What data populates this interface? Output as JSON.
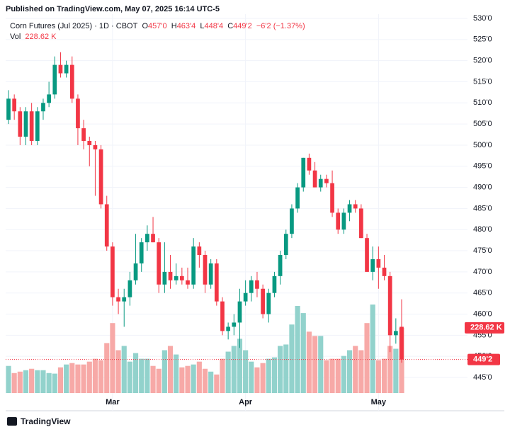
{
  "published": "Published on TradingView.com, May 07, 2025 16:14 UTC-5",
  "header": {
    "symbol": "Corn Futures (Jul 2025) · 1D · CBOT",
    "o_label": "O",
    "o": "457'0",
    "h_label": "H",
    "h": "463'4",
    "l_label": "L",
    "l": "448'4",
    "c_label": "C",
    "c": "449'2",
    "change": "−6'2 (−1.37%)",
    "vol_label": "Vol",
    "vol": "228.62 K"
  },
  "logo": "TradingView",
  "chart_data": {
    "type": "candlestick",
    "up_color": "#089981",
    "down_color": "#f23645",
    "volume_up_color": "#92d2cc",
    "volume_down_color": "#f7a9a7",
    "grid": true,
    "categories": [
      null,
      null,
      null,
      null,
      null,
      null,
      null,
      null,
      null,
      null,
      null,
      null,
      null,
      null,
      null,
      null,
      null,
      null,
      "Mar",
      null,
      null,
      null,
      null,
      null,
      null,
      null,
      null,
      null,
      null,
      null,
      null,
      null,
      null,
      null,
      null,
      null,
      null,
      null,
      null,
      null,
      null,
      "Apr",
      null,
      null,
      null,
      null,
      null,
      null,
      null,
      null,
      null,
      null,
      null,
      null,
      null,
      null,
      null,
      null,
      null,
      null,
      null,
      null,
      null,
      null,
      "May",
      null,
      null,
      null,
      null
    ],
    "open": [
      506,
      511,
      508,
      502,
      508,
      501,
      508,
      510,
      512,
      519,
      517,
      519,
      511,
      504,
      501,
      500,
      499,
      486,
      476,
      464,
      463,
      464,
      468,
      472,
      477,
      479,
      477,
      467,
      470,
      468,
      469,
      468,
      467,
      476,
      474,
      467,
      472,
      463,
      456,
      457,
      458,
      463,
      465,
      468,
      466,
      460,
      465,
      469,
      474,
      479,
      485,
      490,
      497,
      494,
      490,
      492,
      491,
      484,
      480,
      484,
      486,
      485,
      478,
      470,
      473,
      471,
      469,
      455,
      457
    ],
    "high": [
      513,
      512,
      509,
      509,
      510,
      509,
      511,
      515,
      521,
      522,
      520,
      521,
      512,
      506,
      502,
      501,
      500,
      488,
      477,
      466,
      466,
      470,
      479,
      478,
      481,
      483,
      478,
      477,
      474,
      472,
      471,
      471,
      478,
      477,
      475,
      473,
      473,
      464,
      458,
      460,
      466,
      468,
      469,
      470,
      467,
      466,
      470,
      475,
      480,
      486,
      491,
      497,
      498,
      496,
      493,
      493,
      494,
      485,
      485,
      487,
      487,
      486,
      479,
      476,
      476,
      474,
      470,
      459,
      463.5
    ],
    "low": [
      505,
      506,
      500,
      500,
      500,
      500,
      506,
      509,
      511,
      516,
      516,
      510,
      500,
      499,
      495,
      488,
      485,
      475,
      462,
      460,
      457,
      462,
      467,
      470,
      475,
      477,
      465,
      465,
      466,
      467,
      467,
      466,
      466,
      471,
      465,
      466,
      462,
      455,
      454,
      455,
      452,
      462,
      463,
      464,
      459,
      458,
      464,
      467,
      473,
      478,
      484,
      489,
      493,
      490,
      489,
      490,
      483,
      479,
      479,
      482,
      484,
      478,
      470,
      468,
      466,
      468,
      451,
      453,
      448.5
    ],
    "close": [
      511,
      508,
      502,
      508,
      501,
      508,
      510,
      512,
      519,
      517,
      519,
      511,
      504,
      501,
      500,
      499,
      486,
      476,
      464,
      463,
      464,
      468,
      472,
      477,
      479,
      477,
      467,
      470,
      468,
      469,
      468,
      467,
      476,
      474,
      467,
      472,
      463,
      456,
      457,
      458,
      463,
      465,
      468,
      466,
      460,
      465,
      469,
      474,
      479,
      485,
      490,
      497,
      494,
      490,
      492,
      491,
      484,
      480,
      484,
      486,
      485,
      478,
      470,
      473,
      471,
      469,
      455,
      456,
      449.25
    ],
    "close_label": "449'2",
    "volume": [
      95,
      70,
      75,
      80,
      85,
      80,
      80,
      70,
      68,
      90,
      100,
      105,
      100,
      100,
      110,
      120,
      115,
      175,
      245,
      150,
      165,
      110,
      140,
      120,
      120,
      95,
      85,
      150,
      165,
      135,
      90,
      95,
      100,
      110,
      85,
      75,
      65,
      120,
      145,
      165,
      190,
      150,
      110,
      90,
      105,
      120,
      125,
      165,
      170,
      240,
      305,
      280,
      215,
      200,
      200,
      115,
      120,
      120,
      130,
      150,
      165,
      150,
      245,
      310,
      115,
      120,
      165,
      155,
      228.62
    ],
    "volume_label": "228.62 K",
    "ylim": [
      445,
      530
    ],
    "yticks": [
      {
        "value": 445,
        "label": "445'0"
      },
      {
        "value": 450,
        "label": "450'0"
      },
      {
        "value": 455,
        "label": "455'0"
      },
      {
        "value": 460,
        "label": "460'0"
      },
      {
        "value": 465,
        "label": "465'0"
      },
      {
        "value": 470,
        "label": "470'0"
      },
      {
        "value": 475,
        "label": "475'0"
      },
      {
        "value": 480,
        "label": "480'0"
      },
      {
        "value": 485,
        "label": "485'0"
      },
      {
        "value": 490,
        "label": "490'0"
      },
      {
        "value": 495,
        "label": "495'0"
      },
      {
        "value": 500,
        "label": "500'0"
      },
      {
        "value": 505,
        "label": "505'0"
      },
      {
        "value": 510,
        "label": "510'0"
      },
      {
        "value": 515,
        "label": "515'0"
      },
      {
        "value": 520,
        "label": "520'0"
      },
      {
        "value": 525,
        "label": "525'0"
      },
      {
        "value": 530,
        "label": "530'0"
      }
    ]
  }
}
